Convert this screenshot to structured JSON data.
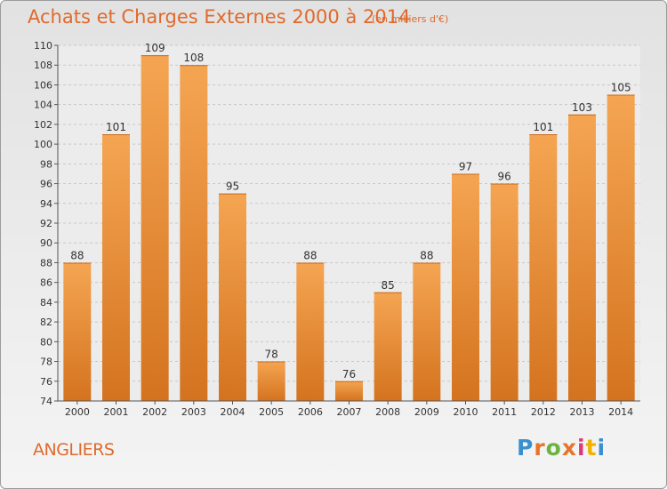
{
  "header": {
    "title": "Achats et Charges Externes 2000 à 2014",
    "subtitle": "(en milliers d'€)"
  },
  "footer": {
    "commune": "ANGLIERS",
    "logo_text": "Proxiti"
  },
  "colors": {
    "title": "#e06a2c",
    "bar_light": "#f5a552",
    "bar_dark": "#d4731f",
    "grid": "#c8c8c8"
  },
  "chart_data": {
    "type": "bar",
    "categories": [
      "2000",
      "2001",
      "2002",
      "2003",
      "2004",
      "2005",
      "2006",
      "2007",
      "2008",
      "2009",
      "2010",
      "2011",
      "2012",
      "2013",
      "2014"
    ],
    "values": [
      88,
      101,
      109,
      108,
      95,
      78,
      88,
      76,
      85,
      88,
      97,
      96,
      101,
      103,
      105
    ],
    "title": "Achats et Charges Externes 2000 à 2014",
    "ylim": [
      74,
      110
    ],
    "yticks": [
      74,
      76,
      78,
      80,
      82,
      84,
      86,
      88,
      90,
      92,
      94,
      96,
      98,
      100,
      102,
      104,
      106,
      108,
      110
    ],
    "grid": true,
    "data_labels": true
  }
}
